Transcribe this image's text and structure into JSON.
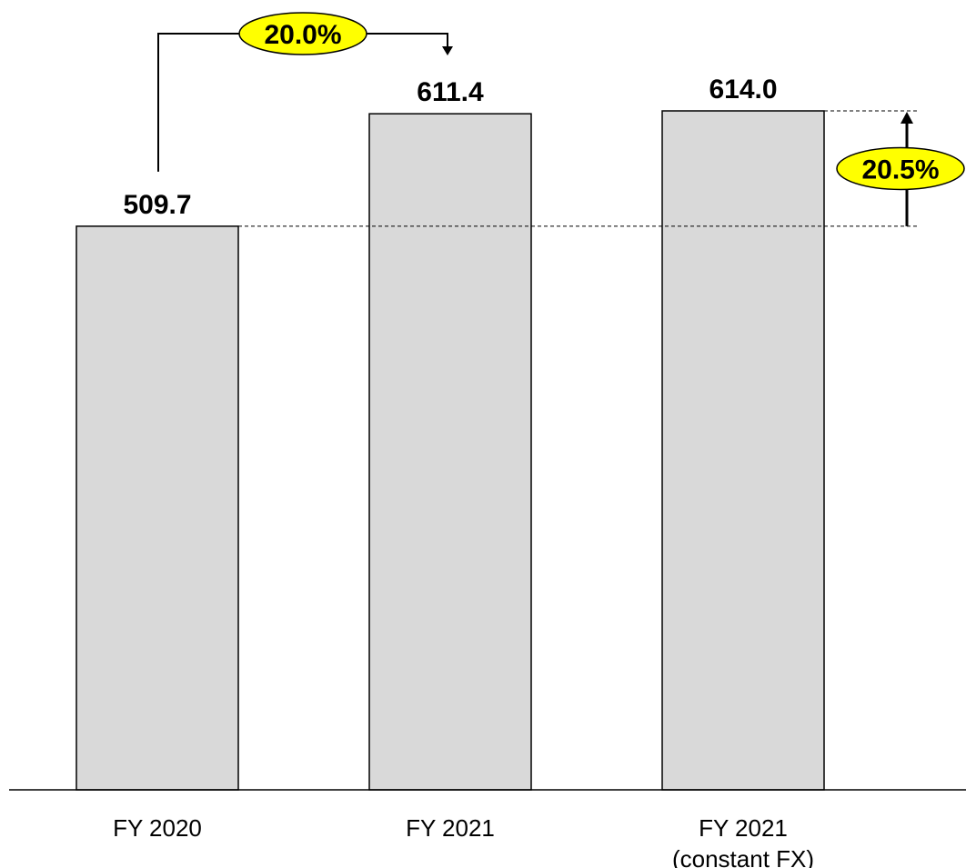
{
  "chart_data": {
    "type": "bar",
    "categories": [
      [
        "FY 2020"
      ],
      [
        "FY 2021"
      ],
      [
        "FY 2021",
        "(constant FX)"
      ]
    ],
    "values": [
      509.7,
      611.4,
      614.0
    ],
    "value_labels": [
      "509.7",
      "611.4",
      "614.0"
    ],
    "title": "",
    "xlabel": "",
    "ylabel": "",
    "ylim": [
      0,
      614
    ],
    "grid": false,
    "bar_color": "#d9d9d9",
    "annotations": [
      {
        "type": "bracket-arrow",
        "from": 0,
        "to": 1,
        "label": "20.0%"
      },
      {
        "type": "vertical-arrow",
        "from": 0,
        "to": 2,
        "label": "20.5%"
      }
    ],
    "annotation_color": "#ffff00"
  }
}
